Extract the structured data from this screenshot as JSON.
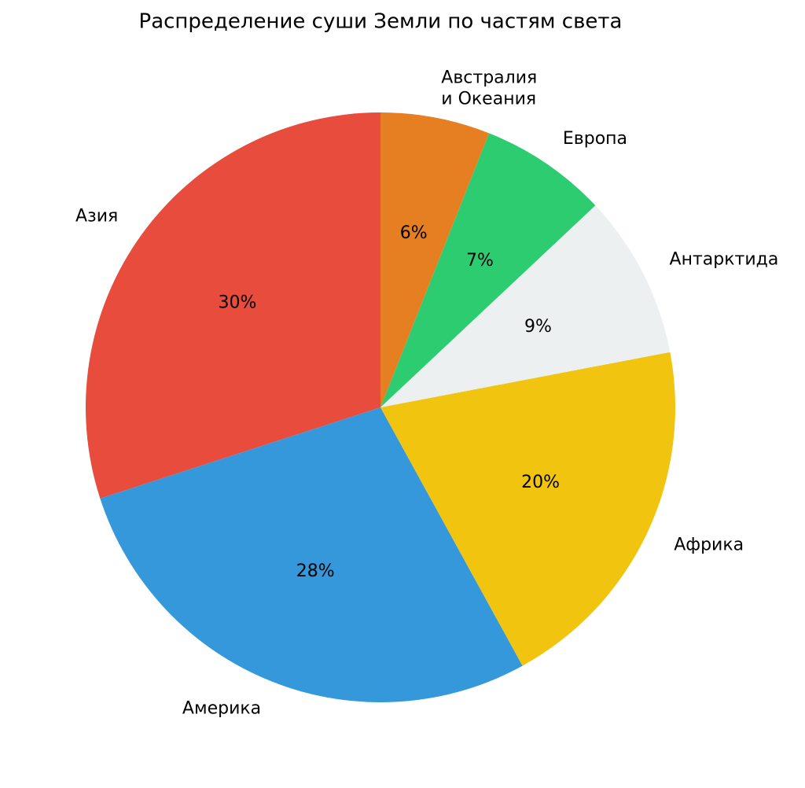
{
  "chart_data": {
    "type": "pie",
    "title": "Распределение суши Земли по частям света",
    "categories": [
      "Азия",
      "Америка",
      "Африка",
      "Антарктида",
      "Европа",
      "Австралия\nи Океания"
    ],
    "values": [
      30,
      28,
      20,
      9,
      7,
      6
    ],
    "value_labels": [
      "30%",
      "28%",
      "20%",
      "9%",
      "7%",
      "6%"
    ],
    "colors": [
      "#e74c3c",
      "#3498db",
      "#f1c40f",
      "#ecf0f1",
      "#2ecc71",
      "#e67e22"
    ],
    "start_angle": 90,
    "direction": "counterclockwise"
  }
}
